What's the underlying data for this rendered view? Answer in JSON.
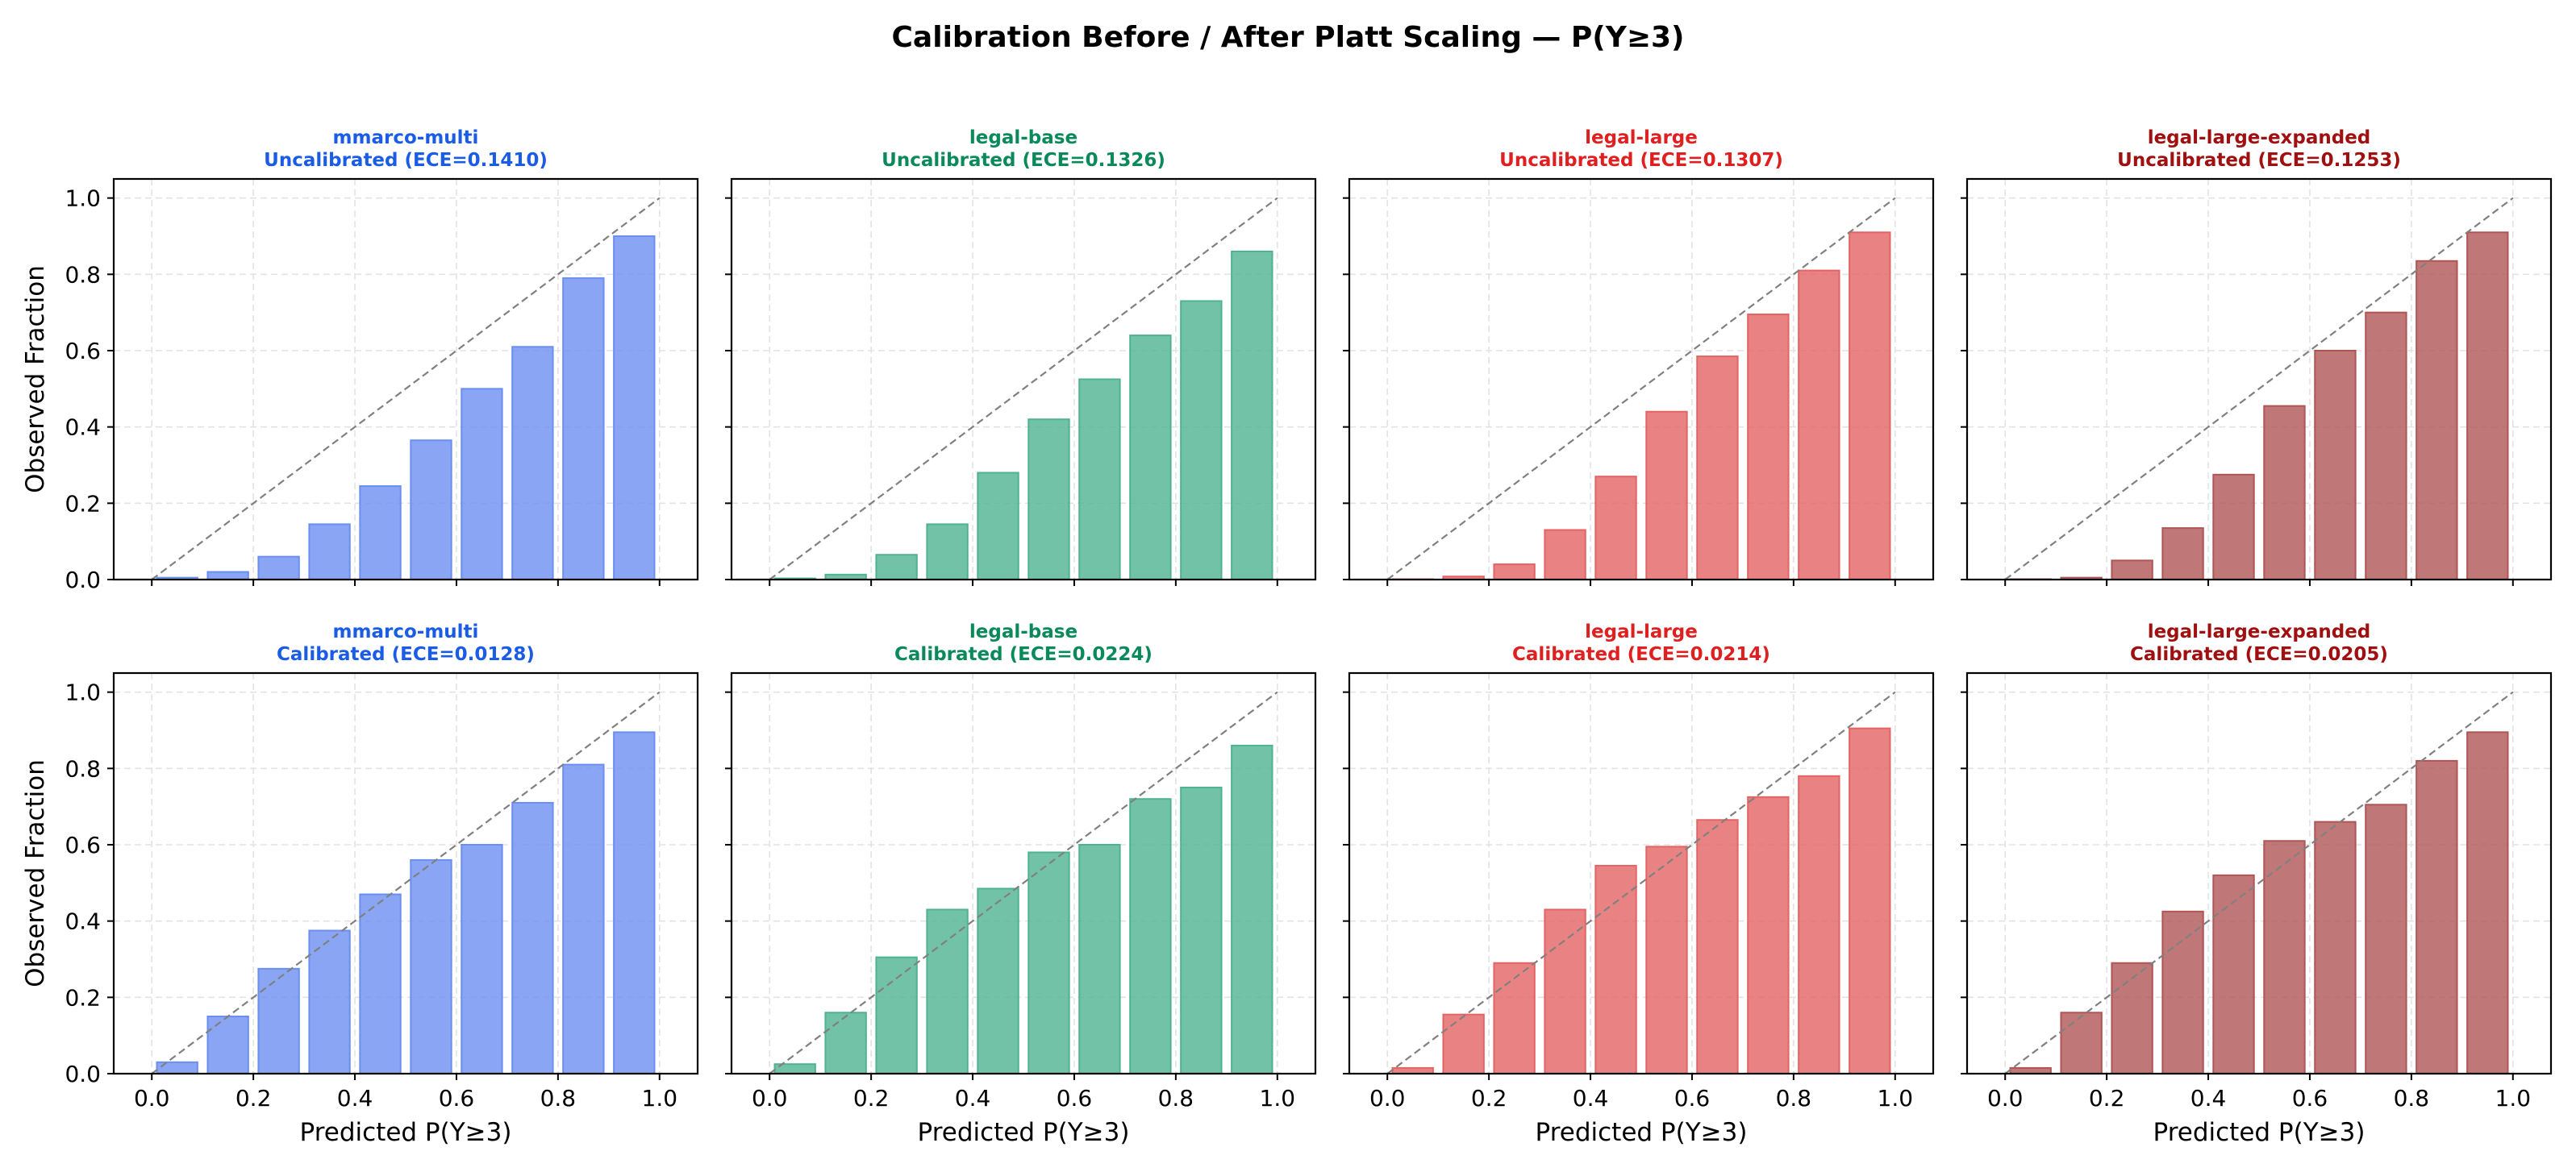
{
  "figure": {
    "title": "Calibration Before / After Platt Scaling — P(Y≥3)",
    "ylabel": "Observed Fraction",
    "xlabel": "Predicted P(Y≥3)",
    "row_titles": [
      "Uncalibrated",
      "Calibrated"
    ]
  },
  "chart_data": [
    {
      "type": "bar",
      "model": "mmarco-multi",
      "state": "Uncalibrated",
      "ece": "0.1410",
      "title_line1": "mmarco-multi",
      "title_line2": "Uncalibrated (ECE=0.1410)",
      "color": "#1a5ce6",
      "bar_color": "#6b8ff0",
      "x": [
        0.05,
        0.15,
        0.25,
        0.35,
        0.45,
        0.55,
        0.65,
        0.75,
        0.85,
        0.95
      ],
      "values": [
        0.005,
        0.02,
        0.06,
        0.145,
        0.245,
        0.365,
        0.5,
        0.61,
        0.79,
        0.9
      ],
      "xlim": [
        -0.075,
        1.075
      ],
      "ylim": [
        0,
        1.05
      ],
      "xticks": [
        "0.0",
        "0.2",
        "0.4",
        "0.6",
        "0.8",
        "1.0"
      ],
      "yticks": [
        "0.0",
        "0.2",
        "0.4",
        "0.6",
        "0.8",
        "1.0"
      ],
      "grid": true
    },
    {
      "type": "bar",
      "model": "legal-base",
      "state": "Uncalibrated",
      "ece": "0.1326",
      "title_line1": "legal-base",
      "title_line2": "Uncalibrated (ECE=0.1326)",
      "color": "#0a8a5a",
      "bar_color": "#4fb391",
      "x": [
        0.05,
        0.15,
        0.25,
        0.35,
        0.45,
        0.55,
        0.65,
        0.75,
        0.85,
        0.95
      ],
      "values": [
        0.003,
        0.013,
        0.065,
        0.145,
        0.28,
        0.42,
        0.525,
        0.64,
        0.73,
        0.86
      ],
      "xlim": [
        -0.075,
        1.075
      ],
      "ylim": [
        0,
        1.05
      ],
      "xticks": [
        "0.0",
        "0.2",
        "0.4",
        "0.6",
        "0.8",
        "1.0"
      ],
      "yticks": [
        "0.0",
        "0.2",
        "0.4",
        "0.6",
        "0.8",
        "1.0"
      ],
      "grid": true
    },
    {
      "type": "bar",
      "model": "legal-large",
      "state": "Uncalibrated",
      "ece": "0.1307",
      "title_line1": "legal-large",
      "title_line2": "Uncalibrated (ECE=0.1307)",
      "color": "#e02020",
      "bar_color": "#e46464",
      "x": [
        0.05,
        0.15,
        0.25,
        0.35,
        0.45,
        0.55,
        0.65,
        0.75,
        0.85,
        0.95
      ],
      "values": [
        0.001,
        0.008,
        0.04,
        0.13,
        0.27,
        0.44,
        0.585,
        0.695,
        0.81,
        0.91
      ],
      "xlim": [
        -0.075,
        1.075
      ],
      "ylim": [
        0,
        1.05
      ],
      "xticks": [
        "0.0",
        "0.2",
        "0.4",
        "0.6",
        "0.8",
        "1.0"
      ],
      "yticks": [
        "0.0",
        "0.2",
        "0.4",
        "0.6",
        "0.8",
        "1.0"
      ],
      "grid": true
    },
    {
      "type": "bar",
      "model": "legal-large-expanded",
      "state": "Uncalibrated",
      "ece": "0.1253",
      "title_line1": "legal-large-expanded",
      "title_line2": "Uncalibrated (ECE=0.1253)",
      "color": "#a01010",
      "bar_color": "#b05555",
      "x": [
        0.05,
        0.15,
        0.25,
        0.35,
        0.45,
        0.55,
        0.65,
        0.75,
        0.85,
        0.95
      ],
      "values": [
        0.001,
        0.005,
        0.05,
        0.135,
        0.275,
        0.455,
        0.6,
        0.7,
        0.835,
        0.91
      ],
      "xlim": [
        -0.075,
        1.075
      ],
      "ylim": [
        0,
        1.05
      ],
      "xticks": [
        "0.0",
        "0.2",
        "0.4",
        "0.6",
        "0.8",
        "1.0"
      ],
      "yticks": [
        "0.0",
        "0.2",
        "0.4",
        "0.6",
        "0.8",
        "1.0"
      ],
      "grid": true
    },
    {
      "type": "bar",
      "model": "mmarco-multi",
      "state": "Calibrated",
      "ece": "0.0128",
      "title_line1": "mmarco-multi",
      "title_line2": "Calibrated (ECE=0.0128)",
      "color": "#1a5ce6",
      "bar_color": "#6b8ff0",
      "x": [
        0.05,
        0.15,
        0.25,
        0.35,
        0.45,
        0.55,
        0.65,
        0.75,
        0.85,
        0.95
      ],
      "values": [
        0.03,
        0.15,
        0.275,
        0.375,
        0.47,
        0.56,
        0.6,
        0.71,
        0.81,
        0.895
      ],
      "xlim": [
        -0.075,
        1.075
      ],
      "ylim": [
        0,
        1.05
      ],
      "xticks": [
        "0.0",
        "0.2",
        "0.4",
        "0.6",
        "0.8",
        "1.0"
      ],
      "yticks": [
        "0.0",
        "0.2",
        "0.4",
        "0.6",
        "0.8",
        "1.0"
      ],
      "grid": true
    },
    {
      "type": "bar",
      "model": "legal-base",
      "state": "Calibrated",
      "ece": "0.0224",
      "title_line1": "legal-base",
      "title_line2": "Calibrated (ECE=0.0224)",
      "color": "#0a8a5a",
      "bar_color": "#4fb391",
      "x": [
        0.05,
        0.15,
        0.25,
        0.35,
        0.45,
        0.55,
        0.65,
        0.75,
        0.85,
        0.95
      ],
      "values": [
        0.025,
        0.16,
        0.305,
        0.43,
        0.485,
        0.58,
        0.6,
        0.72,
        0.75,
        0.86
      ],
      "xlim": [
        -0.075,
        1.075
      ],
      "ylim": [
        0,
        1.05
      ],
      "xticks": [
        "0.0",
        "0.2",
        "0.4",
        "0.6",
        "0.8",
        "1.0"
      ],
      "yticks": [
        "0.0",
        "0.2",
        "0.4",
        "0.6",
        "0.8",
        "1.0"
      ],
      "grid": true
    },
    {
      "type": "bar",
      "model": "legal-large",
      "state": "Calibrated",
      "ece": "0.0214",
      "title_line1": "legal-large",
      "title_line2": "Calibrated (ECE=0.0214)",
      "color": "#e02020",
      "bar_color": "#e46464",
      "x": [
        0.05,
        0.15,
        0.25,
        0.35,
        0.45,
        0.55,
        0.65,
        0.75,
        0.85,
        0.95
      ],
      "values": [
        0.015,
        0.155,
        0.29,
        0.43,
        0.545,
        0.595,
        0.665,
        0.725,
        0.78,
        0.905
      ],
      "xlim": [
        -0.075,
        1.075
      ],
      "ylim": [
        0,
        1.05
      ],
      "xticks": [
        "0.0",
        "0.2",
        "0.4",
        "0.6",
        "0.8",
        "1.0"
      ],
      "yticks": [
        "0.0",
        "0.2",
        "0.4",
        "0.6",
        "0.8",
        "1.0"
      ],
      "grid": true
    },
    {
      "type": "bar",
      "model": "legal-large-expanded",
      "state": "Calibrated",
      "ece": "0.0205",
      "title_line1": "legal-large-expanded",
      "title_line2": "Calibrated (ECE=0.0205)",
      "color": "#a01010",
      "bar_color": "#b05555",
      "x": [
        0.05,
        0.15,
        0.25,
        0.35,
        0.45,
        0.55,
        0.65,
        0.75,
        0.85,
        0.95
      ],
      "values": [
        0.015,
        0.16,
        0.29,
        0.425,
        0.52,
        0.61,
        0.66,
        0.705,
        0.82,
        0.895
      ],
      "xlim": [
        -0.075,
        1.075
      ],
      "ylim": [
        0,
        1.05
      ],
      "xticks": [
        "0.0",
        "0.2",
        "0.4",
        "0.6",
        "0.8",
        "1.0"
      ],
      "yticks": [
        "0.0",
        "0.2",
        "0.4",
        "0.6",
        "0.8",
        "1.0"
      ],
      "grid": true
    }
  ]
}
